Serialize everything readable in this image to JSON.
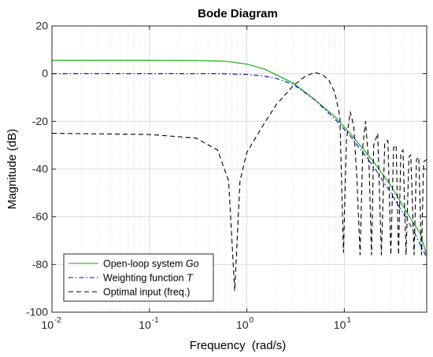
{
  "chart_data": {
    "type": "line",
    "title": "Bode Diagram",
    "xlabel": "Frequency  (rad/s)",
    "ylabel": "Magnitude (dB)",
    "xscale": "log",
    "xlim": [
      0.01,
      70
    ],
    "ylim": [
      -100,
      20
    ],
    "grid": true,
    "y_ticks": [
      "-100",
      "-80",
      "-60",
      "-40",
      "-20",
      "0",
      "20"
    ],
    "x_tick_bases": [
      "10",
      "10",
      "10",
      "10"
    ],
    "x_tick_exponents": [
      "-2",
      "-1",
      "0",
      "1"
    ],
    "legend_position": "bottom-left",
    "series": [
      {
        "name": "Open-loop system",
        "name_italic": "Go",
        "color": "#00aa00",
        "style": "solid",
        "points": [
          [
            0.01,
            5.6
          ],
          [
            0.1,
            5.6
          ],
          [
            0.3,
            5.5
          ],
          [
            0.6,
            5.2
          ],
          [
            1.0,
            4.0
          ],
          [
            1.5,
            2.0
          ],
          [
            2.0,
            -0.5
          ],
          [
            3.0,
            -4.0
          ],
          [
            5.0,
            -11.0
          ],
          [
            8.0,
            -18.0
          ],
          [
            12.0,
            -26.0
          ],
          [
            20.0,
            -37.0
          ],
          [
            30.0,
            -47.0
          ],
          [
            50.0,
            -62.0
          ],
          [
            60.0,
            -67.0
          ],
          [
            70.0,
            -76.0
          ]
        ]
      },
      {
        "name": "Weighting function",
        "name_italic": "T",
        "color": "#0000cc",
        "style": "dashdot",
        "points": [
          [
            0.01,
            0.0
          ],
          [
            0.1,
            0.0
          ],
          [
            0.5,
            0.0
          ],
          [
            1.0,
            -0.3
          ],
          [
            1.5,
            -1.0
          ],
          [
            2.0,
            -2.0
          ],
          [
            3.0,
            -4.5
          ],
          [
            5.0,
            -11.0
          ],
          [
            8.0,
            -19.0
          ],
          [
            12.0,
            -27.0
          ],
          [
            20.0,
            -39.0
          ],
          [
            30.0,
            -50.0
          ],
          [
            50.0,
            -65.0
          ],
          [
            70.0,
            -77.0
          ]
        ]
      },
      {
        "name": "Optimal input (freq.)",
        "name_italic": "",
        "color": "#000000",
        "style": "dashed",
        "points": [
          [
            0.01,
            -25.0
          ],
          [
            0.1,
            -25.5
          ],
          [
            0.3,
            -27.0
          ],
          [
            0.5,
            -32.0
          ],
          [
            0.65,
            -45.0
          ],
          [
            0.75,
            -91.0
          ],
          [
            0.85,
            -45.0
          ],
          [
            1.0,
            -33.0
          ],
          [
            1.5,
            -21.0
          ],
          [
            2.0,
            -13.0
          ],
          [
            3.0,
            -5.0
          ],
          [
            4.0,
            -1.0
          ],
          [
            5.0,
            0.5
          ],
          [
            6.0,
            -0.5
          ],
          [
            7.0,
            -3.0
          ],
          [
            8.0,
            -8.0
          ],
          [
            9.0,
            -18.0
          ],
          [
            9.8,
            -75.0
          ],
          [
            10.5,
            -28.0
          ],
          [
            11.5,
            -16.0
          ],
          [
            12.5,
            -22.0
          ],
          [
            13.5,
            -45.0
          ],
          [
            14.5,
            -76.0
          ],
          [
            15.5,
            -30.0
          ],
          [
            16.5,
            -20.0
          ],
          [
            18.0,
            -40.0
          ],
          [
            19.0,
            -76.0
          ],
          [
            20.0,
            -30.0
          ],
          [
            22.0,
            -25.0
          ],
          [
            24.0,
            -76.0
          ],
          [
            26.0,
            -29.0
          ],
          [
            28.0,
            -28.0
          ],
          [
            30.0,
            -76.0
          ],
          [
            32.0,
            -31.0
          ],
          [
            34.0,
            -30.0
          ],
          [
            36.0,
            -76.0
          ],
          [
            38.0,
            -33.0
          ],
          [
            40.0,
            -32.0
          ],
          [
            43.0,
            -76.0
          ],
          [
            46.0,
            -35.0
          ],
          [
            48.0,
            -34.0
          ],
          [
            52.0,
            -76.0
          ],
          [
            55.0,
            -36.0
          ],
          [
            58.0,
            -35.0
          ],
          [
            62.0,
            -76.0
          ],
          [
            65.0,
            -37.0
          ],
          [
            70.0,
            -36.0
          ]
        ]
      }
    ]
  }
}
